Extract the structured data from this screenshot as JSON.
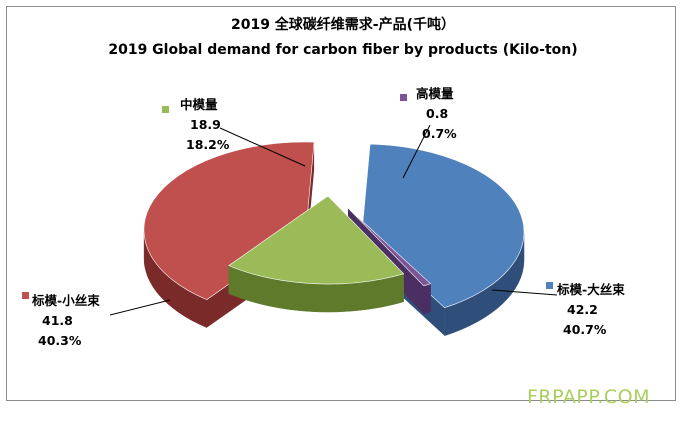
{
  "chart_data": {
    "type": "pie",
    "title": "2019 全球碳纤维需求-产品(千吨）",
    "subtitle": "2019 Global demand for carbon fiber by products (Kilo-ton)",
    "slices": [
      {
        "label": "标模-大丝束",
        "value": 42.2,
        "percent": "40.7%",
        "value_text": "42.2",
        "color": "#4f81bd",
        "side_color": "#2f4f7a"
      },
      {
        "label": "高模量",
        "value": 0.8,
        "percent": "0.7%",
        "value_text": "0.8",
        "color": "#7b5596",
        "side_color": "#4b2f63"
      },
      {
        "label": "中模量",
        "value": 18.9,
        "percent": "18.2%",
        "value_text": "18.9",
        "color": "#9bbb59",
        "side_color": "#5f7a2a"
      },
      {
        "label": "标模-小丝束",
        "value": 41.8,
        "percent": "40.3%",
        "value_text": "41.8",
        "color": "#c0504d",
        "side_color": "#7a2a28"
      }
    ]
  },
  "watermark": "FRPAPP.COM"
}
